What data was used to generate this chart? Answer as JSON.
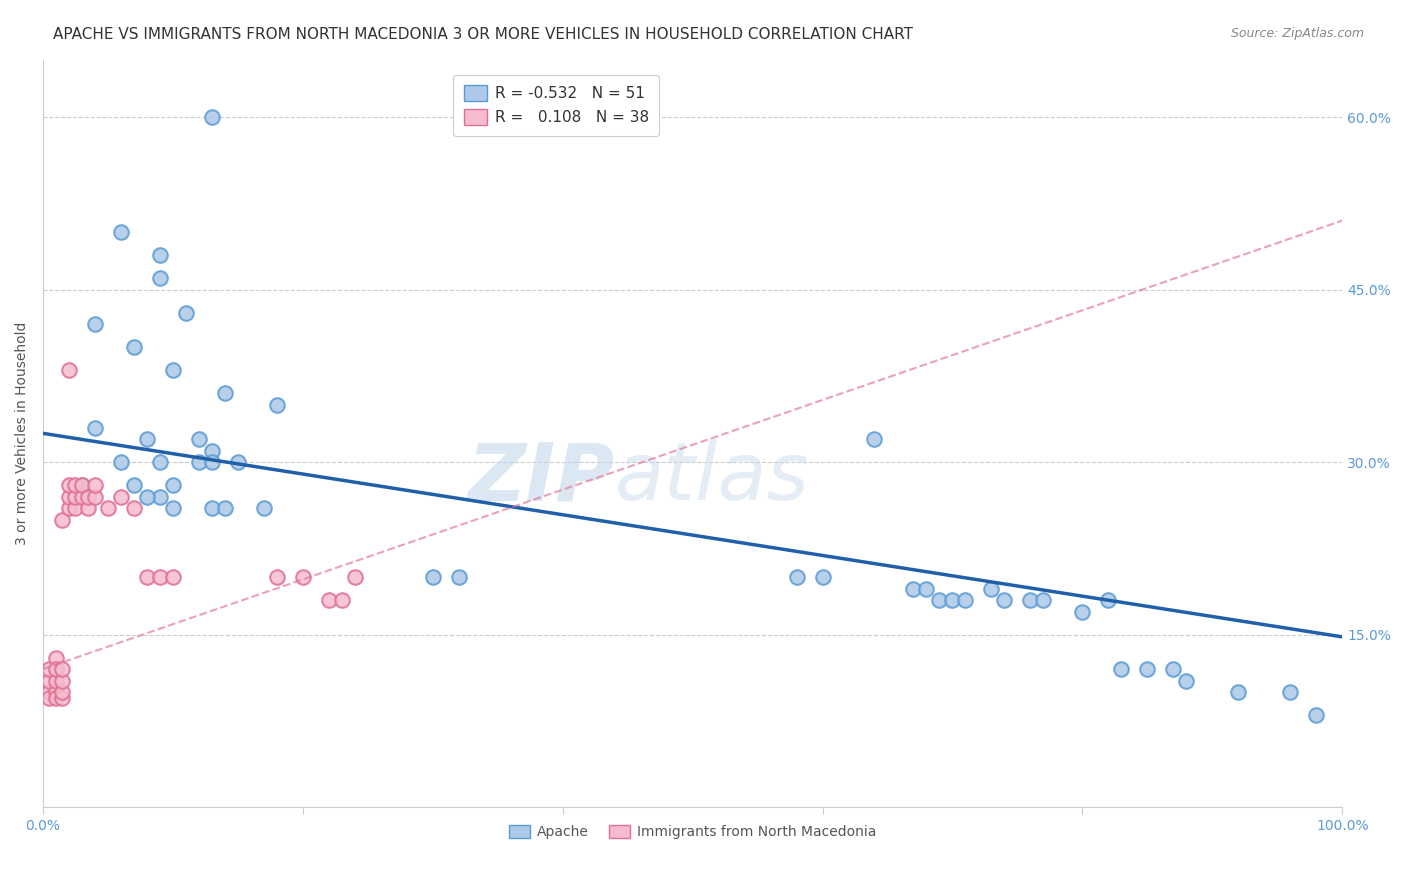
{
  "title": "APACHE VS IMMIGRANTS FROM NORTH MACEDONIA 3 OR MORE VEHICLES IN HOUSEHOLD CORRELATION CHART",
  "source": "Source: ZipAtlas.com",
  "ylabel": "3 or more Vehicles in Household",
  "xlim": [
    0.0,
    1.0
  ],
  "ylim": [
    0.0,
    0.65
  ],
  "xticks": [
    0.0,
    0.2,
    0.4,
    0.6,
    0.8,
    1.0
  ],
  "xticklabels": [
    "0.0%",
    "",
    "",
    "",
    "",
    "100.0%"
  ],
  "yticks": [
    0.0,
    0.15,
    0.3,
    0.45,
    0.6
  ],
  "yticklabels": [
    "",
    "15.0%",
    "30.0%",
    "45.0%",
    "60.0%"
  ],
  "grid_color": "#cccccc",
  "background_color": "#ffffff",
  "apache_color": "#adc8e8",
  "nmacedonia_color": "#f5bcd0",
  "apache_edge_color": "#5b9bd5",
  "nmacedonia_edge_color": "#e07090",
  "apache_line_color": "#2060a8",
  "nmacedonia_line_color": "#e07090",
  "legend_apache_r": "-0.532",
  "legend_apache_n": "51",
  "legend_nmacedonia_r": "0.108",
  "legend_nmacedonia_n": "38",
  "apache_scatter_x": [
    0.13,
    0.06,
    0.09,
    0.09,
    0.11,
    0.04,
    0.07,
    0.1,
    0.14,
    0.18,
    0.04,
    0.08,
    0.12,
    0.13,
    0.06,
    0.09,
    0.12,
    0.13,
    0.15,
    0.03,
    0.07,
    0.09,
    0.1,
    0.08,
    0.1,
    0.13,
    0.14,
    0.17,
    0.3,
    0.32,
    0.58,
    0.6,
    0.64,
    0.67,
    0.68,
    0.69,
    0.7,
    0.71,
    0.73,
    0.74,
    0.76,
    0.77,
    0.8,
    0.82,
    0.83,
    0.85,
    0.87,
    0.88,
    0.92,
    0.96,
    0.98
  ],
  "apache_scatter_y": [
    0.6,
    0.5,
    0.48,
    0.46,
    0.43,
    0.42,
    0.4,
    0.38,
    0.36,
    0.35,
    0.33,
    0.32,
    0.32,
    0.31,
    0.3,
    0.3,
    0.3,
    0.3,
    0.3,
    0.28,
    0.28,
    0.27,
    0.28,
    0.27,
    0.26,
    0.26,
    0.26,
    0.26,
    0.2,
    0.2,
    0.2,
    0.2,
    0.32,
    0.19,
    0.19,
    0.18,
    0.18,
    0.18,
    0.19,
    0.18,
    0.18,
    0.18,
    0.17,
    0.18,
    0.12,
    0.12,
    0.12,
    0.11,
    0.1,
    0.1,
    0.08
  ],
  "nmacedonia_scatter_x": [
    0.005,
    0.005,
    0.005,
    0.005,
    0.01,
    0.01,
    0.01,
    0.01,
    0.01,
    0.015,
    0.015,
    0.015,
    0.015,
    0.015,
    0.02,
    0.02,
    0.02,
    0.02,
    0.025,
    0.025,
    0.025,
    0.03,
    0.03,
    0.035,
    0.035,
    0.04,
    0.04,
    0.05,
    0.06,
    0.07,
    0.08,
    0.09,
    0.1,
    0.18,
    0.2,
    0.22,
    0.23,
    0.24
  ],
  "nmacedonia_scatter_y": [
    0.1,
    0.11,
    0.12,
    0.095,
    0.1,
    0.11,
    0.095,
    0.13,
    0.12,
    0.095,
    0.1,
    0.11,
    0.12,
    0.25,
    0.26,
    0.27,
    0.28,
    0.38,
    0.26,
    0.27,
    0.28,
    0.27,
    0.28,
    0.26,
    0.27,
    0.27,
    0.28,
    0.26,
    0.27,
    0.26,
    0.2,
    0.2,
    0.2,
    0.2,
    0.2,
    0.18,
    0.18,
    0.2
  ],
  "apache_trend_x0": 0.0,
  "apache_trend_x1": 1.0,
  "apache_trend_y0": 0.325,
  "apache_trend_y1": 0.148,
  "nmacedonia_trend_x0": 0.0,
  "nmacedonia_trend_x1": 1.0,
  "nmacedonia_trend_y0": 0.12,
  "nmacedonia_trend_y1": 0.51,
  "marker_size": 110,
  "marker_linewidth": 1.5,
  "title_fontsize": 11,
  "source_fontsize": 9,
  "axis_label_fontsize": 10,
  "tick_fontsize": 10,
  "legend_fontsize": 11,
  "ylabel_color": "#555555",
  "tick_color": "#5b9bd5"
}
